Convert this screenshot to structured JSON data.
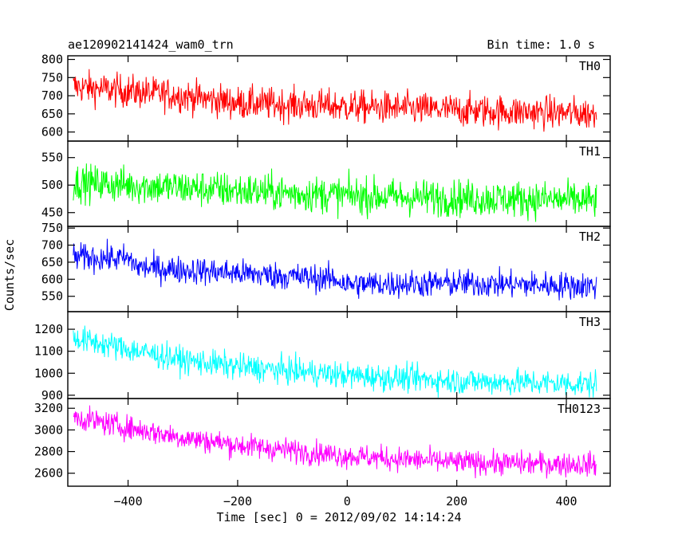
{
  "chart_data": {
    "type": "line",
    "title": "ae120902141424_wam0_trn",
    "bin_time": "Bin time: 1.0 s",
    "xlabel": "Time [sec] 0 = 2012/09/02 14:14:24",
    "ylabel": "Counts/sec",
    "xlim": [
      -510,
      480
    ],
    "x_ticks": [
      -400,
      -200,
      0,
      200,
      400
    ],
    "x_tick_labels": [
      "−400",
      "−200",
      "0",
      "200",
      "400"
    ],
    "data_x_range": [
      -500,
      455
    ],
    "bin_seconds": 1.0,
    "series": [
      {
        "name": "TH0",
        "color": "#ff0000",
        "ylim": [
          575,
          810
        ],
        "y_ticks": [
          600,
          650,
          700,
          750,
          800
        ],
        "trend": [
          [
            -500,
            725
          ],
          [
            -300,
            700
          ],
          [
            -200,
            680
          ],
          [
            0,
            670
          ],
          [
            200,
            660
          ],
          [
            455,
            650
          ]
        ],
        "noise_amplitude": 45
      },
      {
        "name": "TH1",
        "color": "#00ff00",
        "ylim": [
          425,
          580
        ],
        "y_ticks": [
          450,
          500,
          550
        ],
        "trend": [
          [
            -500,
            505
          ],
          [
            -300,
            495
          ],
          [
            -100,
            485
          ],
          [
            100,
            478
          ],
          [
            300,
            475
          ],
          [
            455,
            472
          ]
        ],
        "noise_amplitude": 33
      },
      {
        "name": "TH2",
        "color": "#0000ff",
        "ylim": [
          505,
          755
        ],
        "y_ticks": [
          550,
          600,
          650,
          700,
          750
        ],
        "trend": [
          [
            -500,
            665
          ],
          [
            -400,
            660
          ],
          [
            -380,
            635
          ],
          [
            -200,
            618
          ],
          [
            -20,
            600
          ],
          [
            0,
            585
          ],
          [
            200,
            588
          ],
          [
            455,
            580
          ]
        ],
        "noise_amplitude": 40
      },
      {
        "name": "TH3",
        "color": "#00ffff",
        "ylim": [
          885,
          1280
        ],
        "y_ticks": [
          900,
          1000,
          1100,
          1200
        ],
        "trend": [
          [
            -500,
            1160
          ],
          [
            -400,
            1110
          ],
          [
            -300,
            1060
          ],
          [
            -200,
            1030
          ],
          [
            0,
            990
          ],
          [
            200,
            965
          ],
          [
            455,
            950
          ]
        ],
        "noise_amplitude": 60
      },
      {
        "name": "TH0123",
        "color": "#ff00ff",
        "ylim": [
          2480,
          3290
        ],
        "y_ticks": [
          2600,
          2800,
          3000,
          3200
        ],
        "trend": [
          [
            -500,
            3120
          ],
          [
            -400,
            3020
          ],
          [
            -300,
            2930
          ],
          [
            -200,
            2860
          ],
          [
            0,
            2760
          ],
          [
            200,
            2700
          ],
          [
            455,
            2680
          ]
        ],
        "noise_amplitude": 110
      }
    ]
  }
}
